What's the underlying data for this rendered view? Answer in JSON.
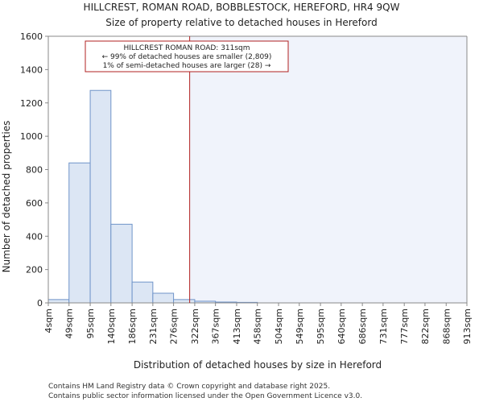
{
  "chart_data": {
    "type": "bar",
    "title_line1": "HILLCREST, ROMAN ROAD, BOBBLESTOCK, HEREFORD, HR4 9QW",
    "title_line2": "Size of property relative to detached houses in Hereford",
    "xlabel": "Distribution of detached houses by size in Hereford",
    "ylabel": "Number of detached properties",
    "ylim": [
      0,
      1600
    ],
    "yticks": [
      0,
      200,
      400,
      600,
      800,
      1000,
      1200,
      1400,
      1600
    ],
    "xlim": [
      4,
      913
    ],
    "bin_edges": [
      4,
      49,
      95,
      140,
      186,
      231,
      276,
      322,
      367,
      413,
      458,
      504,
      549,
      595,
      640,
      686,
      731,
      777,
      822,
      868,
      913
    ],
    "xtick_labels": [
      "4sqm",
      "49sqm",
      "95sqm",
      "140sqm",
      "186sqm",
      "231sqm",
      "276sqm",
      "322sqm",
      "367sqm",
      "413sqm",
      "458sqm",
      "504sqm",
      "549sqm",
      "595sqm",
      "640sqm",
      "686sqm",
      "731sqm",
      "777sqm",
      "822sqm",
      "868sqm",
      "913sqm"
    ],
    "values": [
      20,
      840,
      1275,
      472,
      125,
      58,
      20,
      10,
      5,
      3,
      0,
      0,
      0,
      0,
      0,
      0,
      0,
      0,
      0,
      0
    ],
    "property_marker": {
      "value": 311,
      "label_line1": "HILLCREST ROMAN ROAD: 311sqm",
      "label_line2": "← 99% of detached houses are smaller (2,809)",
      "label_line3": "1% of semi-detached houses are larger (28) →"
    },
    "colors": {
      "bar_fill": "#dce6f4",
      "bar_stroke": "#6f94c9",
      "highlight_fill": "#f0f3fb",
      "marker_line": "#b02020",
      "annot_border": "#b02020",
      "axis": "#888888"
    }
  },
  "footer": {
    "line1": "Contains HM Land Registry data © Crown copyright and database right 2025.",
    "line2": "Contains public sector information licensed under the Open Government Licence v3.0."
  }
}
